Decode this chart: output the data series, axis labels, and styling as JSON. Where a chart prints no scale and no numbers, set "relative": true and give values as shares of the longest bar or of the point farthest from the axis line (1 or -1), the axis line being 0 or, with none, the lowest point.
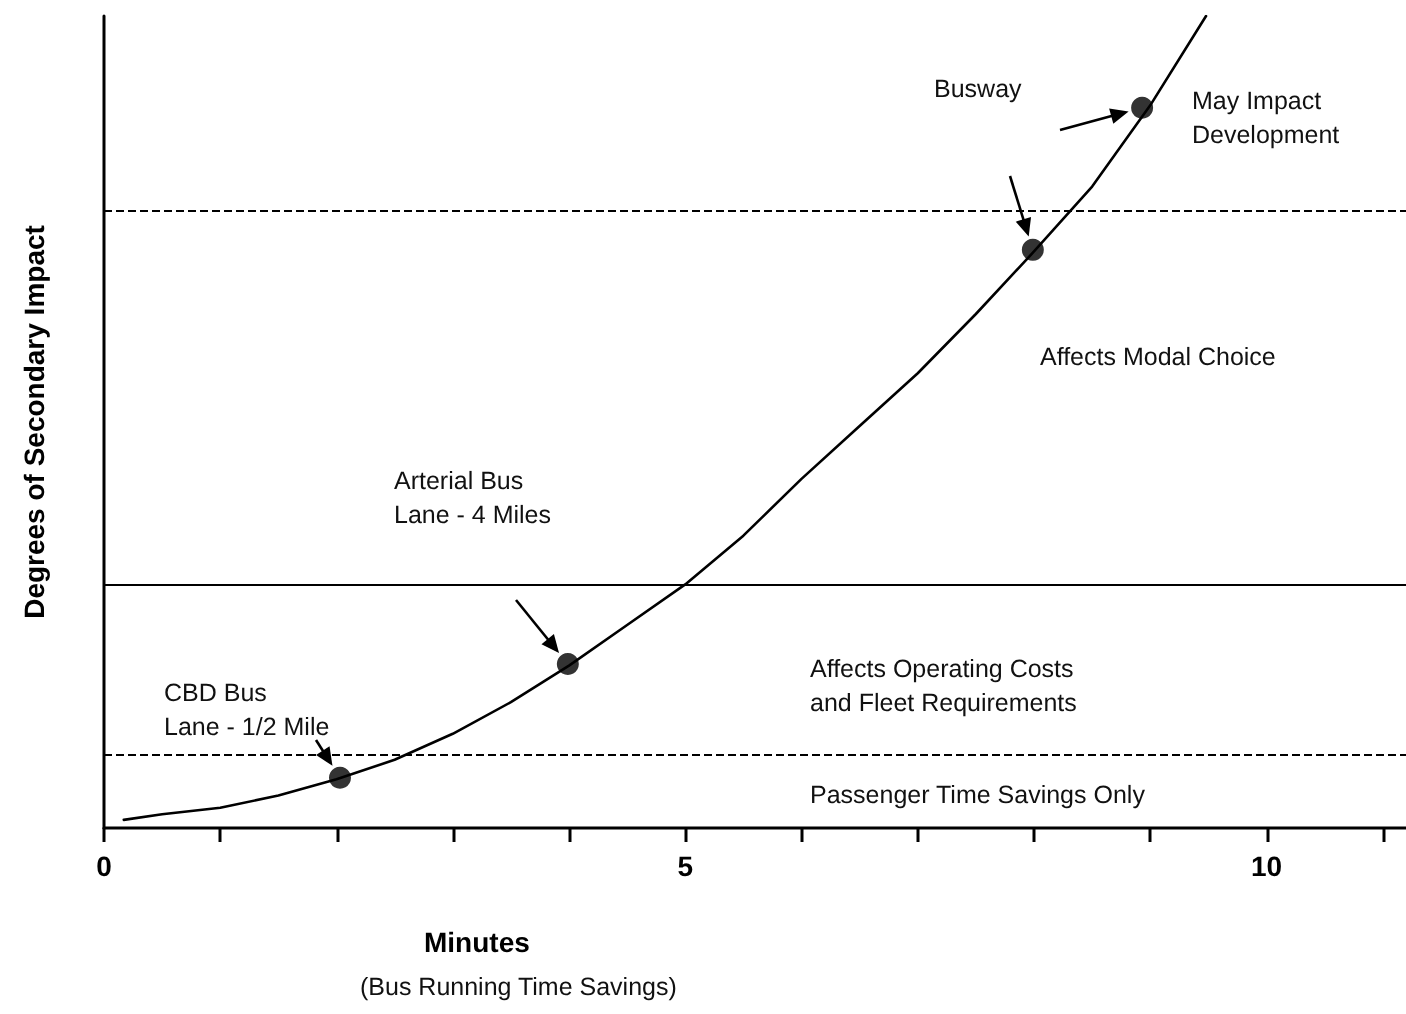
{
  "chart_data": {
    "type": "line",
    "relative": true,
    "xlabel": "Minutes",
    "ylabel": "Degrees of Secondary Impact",
    "xlim": [
      0,
      11.2
    ],
    "xticks": [
      0,
      {
        "value": 1,
        "label": null
      },
      {
        "value": 2,
        "label": null
      },
      {
        "value": 3,
        "label": null
      },
      {
        "value": 4,
        "label": null
      },
      5,
      {
        "value": 6,
        "label": null
      },
      {
        "value": 7,
        "label": null
      },
      {
        "value": 8,
        "label": null
      },
      {
        "value": 9,
        "label": null
      },
      10,
      {
        "value": 11,
        "label": null
      }
    ],
    "grid": false,
    "tick_labels": "x",
    "series": [
      {
        "color": "#000000",
        "marker": "none",
        "line_style": "solid",
        "x": [
          0.17,
          0.5,
          1,
          1.5,
          2,
          2.5,
          3,
          3.5,
          4,
          4.5,
          5,
          5.5,
          6,
          6.5,
          7,
          7.5,
          8,
          8.5,
          9,
          9.48
        ],
        "values": [
          0.01,
          0.017,
          0.025,
          0.04,
          0.06,
          0.084,
          0.116,
          0.155,
          0.2,
          0.25,
          0.3,
          0.36,
          0.43,
          0.495,
          0.56,
          0.633,
          0.71,
          0.79,
          0.89,
          1
        ]
      },
      {
        "type": "scatter",
        "color": "#000000",
        "marker": "circle",
        "x": [
          2.03,
          3.99,
          7.99,
          8.93
        ],
        "values": [
          0.062,
          0.202,
          0.712,
          0.887
        ]
      }
    ],
    "ref_lines": [
      {
        "axis": "y",
        "value": 0.091,
        "line_style": "dashed",
        "color": "#000000"
      },
      {
        "axis": "y",
        "value": 0.296,
        "line_style": "solid",
        "color": "#000000"
      },
      {
        "axis": "y",
        "value": 0.76,
        "line_style": "dashed",
        "color": "#000000"
      }
    ],
    "annotations": [
      "CBD Bus\nLane - 1/2 Mile",
      "Arterial Bus\nLane - 4 Miles",
      "Busway",
      "May Impact\nDevelopment",
      "Affects Modal Choice",
      "Affects Operating Costs\nand Fleet Requirements",
      "Passenger Time Savings Only",
      "(Bus Running Time Savings)"
    ]
  }
}
